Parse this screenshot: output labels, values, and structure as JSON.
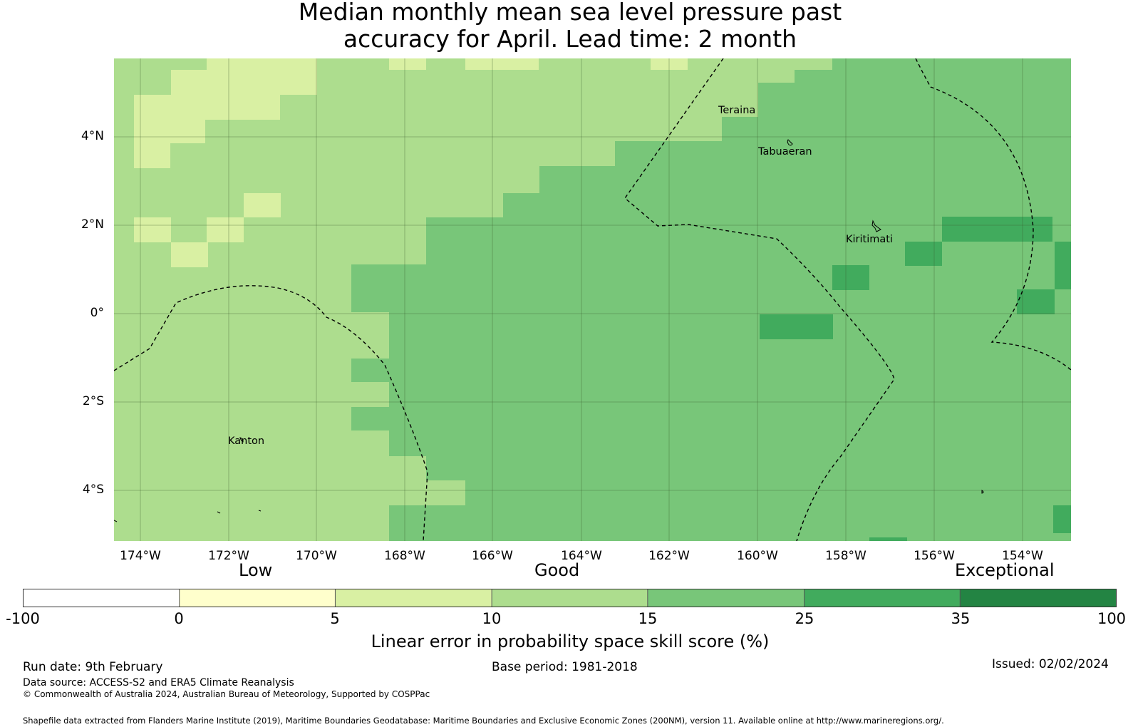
{
  "title": {
    "line1": "Median monthly mean sea level pressure past",
    "line2": "accuracy for April. Lead time: 2 month"
  },
  "map": {
    "lat_labels": [
      "4°N",
      "2°N",
      "0°",
      "2°S",
      "4°S"
    ],
    "lon_labels": [
      "174°W",
      "172°W",
      "170°W",
      "168°W",
      "166°W",
      "164°W",
      "162°W",
      "160°W",
      "158°W",
      "156°W",
      "154°W"
    ],
    "places": {
      "teraina": "Teraina",
      "tabuaeran": "Tabuaeran",
      "kiritimati": "Kiritimati",
      "kanton": "Kanton"
    }
  },
  "legend": {
    "categories": {
      "low": "Low",
      "good": "Good",
      "exceptional": "Exceptional"
    },
    "ticks": [
      "-100",
      "0",
      "5",
      "10",
      "15",
      "25",
      "35",
      "100"
    ],
    "colors": [
      "#ffffff",
      "#ffffcc",
      "#d9f0a3",
      "#addd8e",
      "#78c679",
      "#41ab5d",
      "#238443"
    ],
    "title": "Linear error in probability space skill score (%)"
  },
  "footer": {
    "run_date": "Run date: 9th February",
    "base_period": "Base period: 1981-2018",
    "issued": "Issued: 02/02/2024",
    "data_source": "Data source: ACCESS-S2 and ERA5 Climate Reanalysis",
    "copyright": "© Commonwealth of Australia 2024, Australian Bureau of Meteorology, Supported by COSPPac",
    "shapefile": "Shapefile data extracted from Flanders Marine Institute (2019), Maritime Boundaries Geodatabase: Maritime Boundaries and Exclusive Economic Zones (200NM), version 11. Available online at http://www.marineregions.org/."
  }
}
